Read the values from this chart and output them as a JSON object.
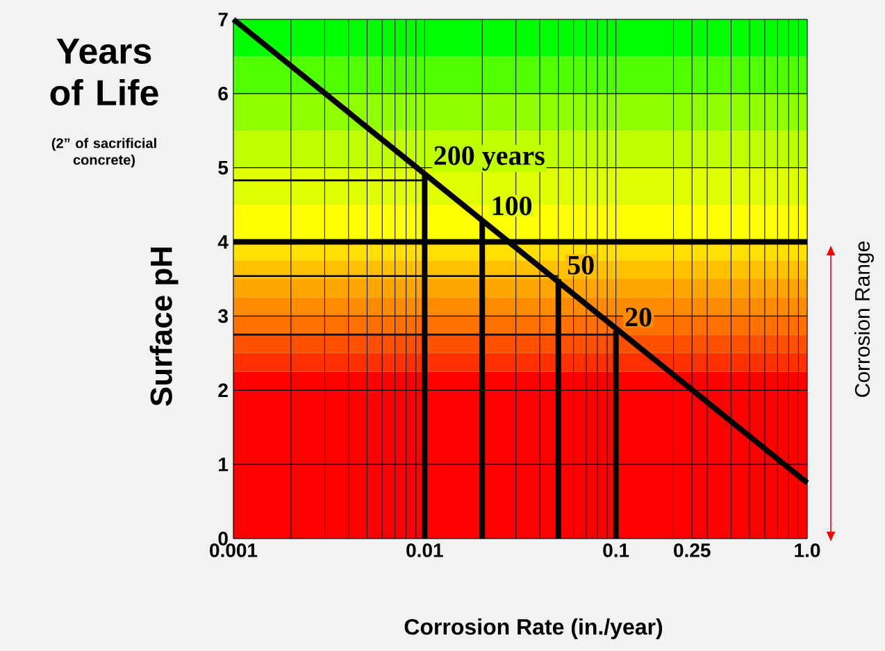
{
  "chart_data": {
    "type": "line",
    "title": "Years of Life",
    "subtitle": "(2” of sacrificial concrete)",
    "xlabel": "Corrosion Rate (in./year)",
    "ylabel": "Surface  pH",
    "log": "x",
    "xlim": [
      0.001,
      1
    ],
    "ylim": [
      0,
      7
    ],
    "xticks": [
      0.001,
      0.01,
      0.1,
      0.25,
      {
        "value": 1,
        "label": "1.0"
      }
    ],
    "yticks": [
      0,
      1,
      2,
      3,
      4,
      5,
      6,
      7
    ],
    "grid": true,
    "series": [
      {
        "color": "#000000",
        "x": [
          0.001,
          1
        ],
        "values": [
          7,
          0.75
        ]
      },
      {
        "color": "#000000",
        "x": [
          0.01,
          0.01
        ],
        "values": [
          0,
          4.9
        ]
      },
      {
        "color": "#000000",
        "x": [
          0.02,
          0.02
        ],
        "values": [
          0,
          4.3
        ]
      },
      {
        "color": "#000000",
        "x": [
          0.05,
          0.05
        ],
        "values": [
          0,
          3.5
        ]
      },
      {
        "color": "#000000",
        "x": [
          0.1,
          0.1
        ],
        "values": [
          0,
          2.8
        ]
      },
      {
        "color": "#000000",
        "x": [
          0.01,
          0.001
        ],
        "values": [
          4.83,
          4.83
        ]
      },
      {
        "color": "#000000",
        "x": [
          0.05,
          0.001
        ],
        "values": [
          3.54,
          3.54
        ]
      },
      {
        "color": "#000000",
        "x": [
          0.1,
          0.001
        ],
        "values": [
          2.75,
          2.75
        ]
      }
    ],
    "ref_lines": [
      {
        "axis": "y",
        "value": 4,
        "color": "#000000"
      }
    ],
    "bands": [
      {
        "axis": "y",
        "from": 0,
        "to": 2.25,
        "color": "#ff0000"
      },
      {
        "axis": "y",
        "from": 2.25,
        "to": 2.5,
        "color": "#ff3000"
      },
      {
        "axis": "y",
        "from": 2.5,
        "to": 2.75,
        "color": "#ff5000"
      },
      {
        "axis": "y",
        "from": 2.75,
        "to": 3,
        "color": "#ff7000"
      },
      {
        "axis": "y",
        "from": 3,
        "to": 3.25,
        "color": "#ff8c00"
      },
      {
        "axis": "y",
        "from": 3.25,
        "to": 3.5,
        "color": "#ffa500"
      },
      {
        "axis": "y",
        "from": 3.5,
        "to": 3.75,
        "color": "#ffc000"
      },
      {
        "axis": "y",
        "from": 3.75,
        "to": 4,
        "color": "#ffe000"
      },
      {
        "axis": "y",
        "from": 4,
        "to": 4.5,
        "color": "#ffff00"
      },
      {
        "axis": "y",
        "from": 4.5,
        "to": 5,
        "color": "#e0ff00"
      },
      {
        "axis": "y",
        "from": 5,
        "to": 5.5,
        "color": "#c0ff00"
      },
      {
        "axis": "y",
        "from": 5.5,
        "to": 6,
        "color": "#90ff00"
      },
      {
        "axis": "y",
        "from": 6,
        "to": 6.5,
        "color": "#50ff00"
      },
      {
        "axis": "y",
        "from": 6.5,
        "to": 7,
        "color": "#00ff00"
      }
    ],
    "annotations": [
      {
        "text": "200 years",
        "x": 0.01,
        "y": 4.9
      },
      {
        "text": "100",
        "x": 0.02,
        "y": 4.3
      },
      {
        "text": "50",
        "x": 0.05,
        "y": 3.5
      },
      {
        "text": "20",
        "x": 0.1,
        "y": 2.8
      },
      "Corrosion Range"
    ]
  }
}
